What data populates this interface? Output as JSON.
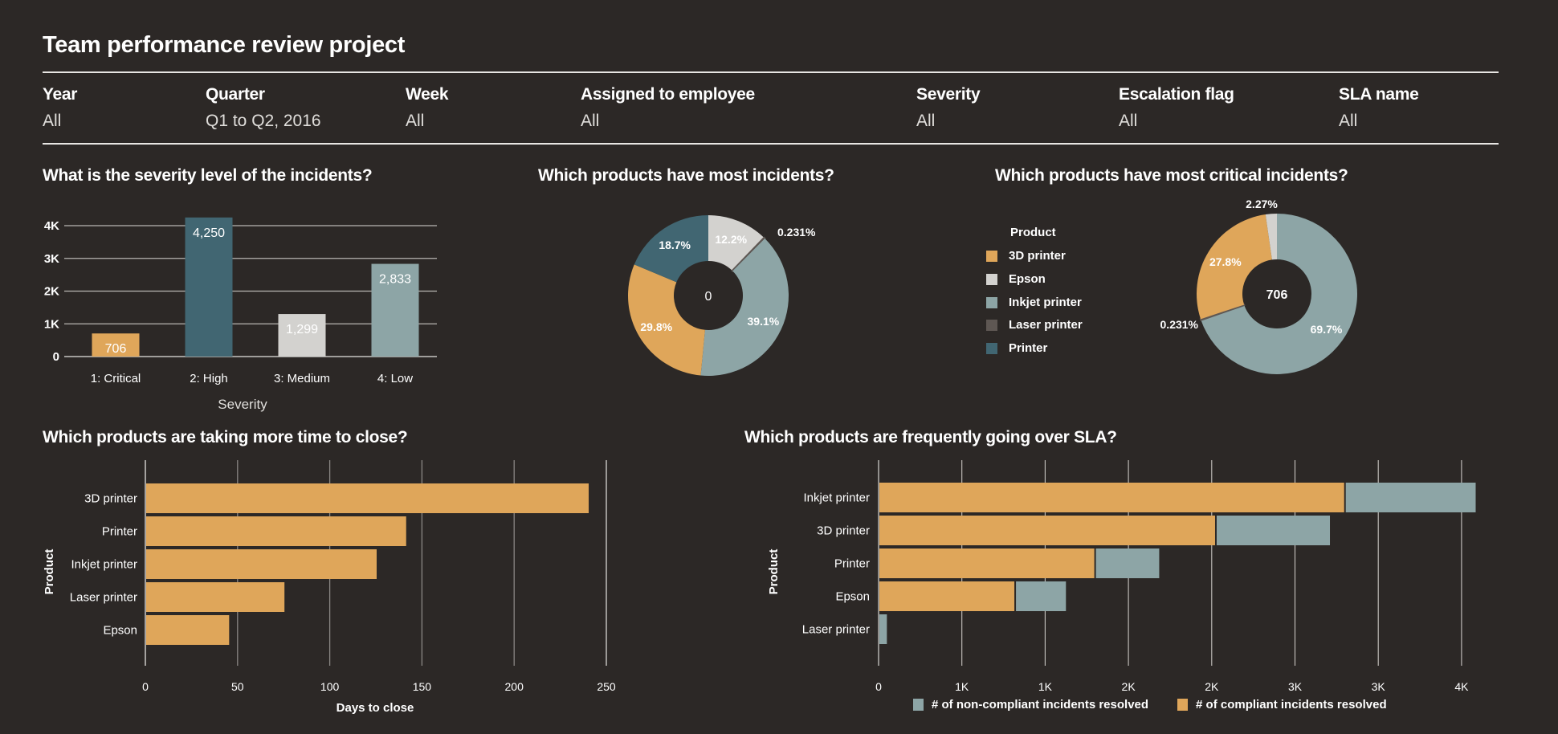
{
  "page": {
    "title": "Team performance review project"
  },
  "filters": [
    {
      "label": "Year",
      "value": "All"
    },
    {
      "label": "Quarter",
      "value": "Q1 to Q2, 2016"
    },
    {
      "label": "Week",
      "value": "All"
    },
    {
      "label": "Assigned to employee",
      "value": "All"
    },
    {
      "label": "Severity",
      "value": "All"
    },
    {
      "label": "Escalation flag",
      "value": "All"
    },
    {
      "label": "SLA name",
      "value": "All"
    }
  ],
  "colors": {
    "background": "#2c2826",
    "3D printer": "#dfa65a",
    "Epson": "#d3d2cf",
    "Inkjet printer": "#8da5a6",
    "Laser printer": "#5e5753",
    "Printer": "#416672",
    "grid": "#8a8784",
    "text": "#ffffff"
  },
  "legend": {
    "title": "Product",
    "items": [
      "3D printer",
      "Epson",
      "Inkjet printer",
      "Laser printer",
      "Printer"
    ]
  },
  "chart_data": [
    {
      "id": "severity",
      "type": "bar",
      "title": "What is the severity level of the incidents?",
      "categories": [
        "1: Critical",
        "2: High",
        "3: Medium",
        "4: Low"
      ],
      "values": [
        706,
        4250,
        1299,
        2833
      ],
      "value_labels": [
        "706",
        "4,250",
        "1,299",
        "2,833"
      ],
      "bar_colors": [
        "#dfa65a",
        "#416672",
        "#d3d2cf",
        "#8da5a6"
      ],
      "xlabel": "Severity",
      "ylabel": "",
      "ylim": [
        0,
        4000
      ],
      "yticks": [
        0,
        1000,
        2000,
        3000,
        4000
      ],
      "ytick_labels": [
        "0",
        "1K",
        "2K",
        "3K",
        "4K"
      ],
      "grid": true
    },
    {
      "id": "most-incidents",
      "type": "pie",
      "donut": true,
      "title": "Which products have most incidents?",
      "center_label": "0",
      "slices": [
        {
          "name": "Epson",
          "value": 12.2,
          "label": "12.2%"
        },
        {
          "name": "Laser printer",
          "value": 0.231,
          "label": "0.231%"
        },
        {
          "name": "Inkjet printer",
          "value": 39.1,
          "label": "39.1%"
        },
        {
          "name": "3D printer",
          "value": 29.8,
          "label": "29.8%"
        },
        {
          "name": "Printer",
          "value": 18.7,
          "label": "18.7%"
        }
      ]
    },
    {
      "id": "critical-incidents",
      "type": "pie",
      "donut": true,
      "title": "Which products have most critical incidents?",
      "center_label": "706",
      "legend_title": "Product",
      "legend_placement": "left",
      "slices": [
        {
          "name": "Inkjet printer",
          "value": 69.7,
          "label": "69.7%"
        },
        {
          "name": "Laser printer",
          "value": 0.231,
          "label": "0.231%"
        },
        {
          "name": "3D printer",
          "value": 27.8,
          "label": "27.8%"
        },
        {
          "name": "Epson",
          "value": 2.27,
          "label": "2.27%"
        }
      ]
    },
    {
      "id": "time-to-close",
      "type": "bar",
      "orientation": "horizontal",
      "title": "Which products are taking more time to close?",
      "categories": [
        "3D printer",
        "Printer",
        "Inkjet printer",
        "Laser printer",
        "Epson"
      ],
      "values": [
        240,
        141,
        125,
        75,
        45
      ],
      "xlabel": "Days to close",
      "ylabel": "Product",
      "xlim": [
        0,
        250
      ],
      "xticks": [
        0,
        50,
        100,
        150,
        200,
        250
      ],
      "xtick_labels": [
        "0",
        "50",
        "100",
        "150",
        "200",
        "250"
      ],
      "bar_color": "#dfa65a",
      "grid": true
    },
    {
      "id": "over-sla",
      "type": "bar",
      "orientation": "horizontal",
      "stacked": true,
      "title": "Which products are frequently going over SLA?",
      "categories": [
        "Inkjet printer",
        "3D printer",
        "Printer",
        "Epson",
        "Laser printer"
      ],
      "series": [
        {
          "name": "# of compliant incidents resolved",
          "color": "#dfa65a",
          "values": [
            2800,
            2025,
            1300,
            820,
            0
          ]
        },
        {
          "name": "# of non-compliant incidents resolved",
          "color": "#8da5a6",
          "values": [
            780,
            680,
            380,
            300,
            45
          ]
        }
      ],
      "legend_order": [
        "# of non-compliant incidents resolved",
        "# of compliant incidents resolved"
      ],
      "legend_placement": "bottom",
      "xlabel": "",
      "ylabel": "Product",
      "xlim": [
        0,
        3500
      ],
      "xticks": [
        0,
        500,
        1000,
        1500,
        2000,
        2500,
        3000,
        3500
      ],
      "xtick_labels": [
        "0",
        "1K",
        "1K",
        "2K",
        "2K",
        "3K",
        "3K",
        "4K"
      ],
      "grid": true
    }
  ]
}
